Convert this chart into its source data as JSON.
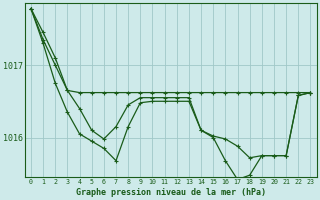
{
  "background_color": "#ceeaea",
  "plot_bg_color": "#ceeaea",
  "grid_color": "#a0c8c8",
  "line_color": "#1a5c1a",
  "xlabel": "Graphe pression niveau de la mer (hPa)",
  "ylim": [
    1015.45,
    1017.85
  ],
  "xlim": [
    -0.5,
    23.5
  ],
  "yticks": [
    1016,
    1017
  ],
  "xticks": [
    0,
    1,
    2,
    3,
    4,
    5,
    6,
    7,
    8,
    9,
    10,
    11,
    12,
    13,
    14,
    15,
    16,
    17,
    18,
    19,
    20,
    21,
    22,
    23
  ],
  "series1": [
    1017.78,
    1017.45,
    1017.1,
    1016.65,
    1016.62,
    1016.62,
    1016.62,
    1016.62,
    1016.62,
    1016.62,
    1016.62,
    1016.62,
    1016.62,
    1016.62,
    1016.62,
    1016.62,
    1016.62,
    1016.62,
    1016.62,
    1016.62,
    1016.62,
    1016.62,
    1016.62,
    1016.62
  ],
  "series2": [
    1017.78,
    1017.35,
    1017.0,
    1016.65,
    1016.4,
    1016.1,
    1015.98,
    1016.15,
    1016.45,
    1016.55,
    1016.55,
    1016.55,
    1016.55,
    1016.55,
    1016.1,
    1016.02,
    1015.98,
    1015.88,
    1015.72,
    1015.75,
    1015.75,
    1015.75,
    1016.58,
    1016.62
  ],
  "series3": [
    1017.78,
    1017.3,
    1016.75,
    1016.35,
    1016.05,
    1015.95,
    1015.85,
    1015.68,
    1016.15,
    1016.48,
    1016.5,
    1016.5,
    1016.5,
    1016.5,
    1016.1,
    1016.0,
    1015.68,
    1015.42,
    1015.48,
    1015.75,
    1015.75,
    1015.75,
    1016.58,
    1016.62
  ]
}
